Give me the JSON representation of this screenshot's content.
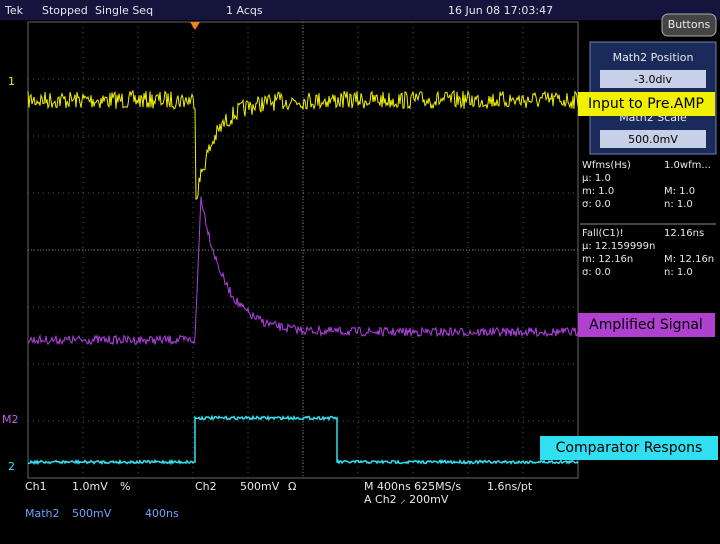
{
  "status_bar": {
    "brand": "Tek",
    "state": "Stopped",
    "mode": "Single Seq",
    "acquisitions": "1 Acqs",
    "timestamp": "16 Jun 08 17:03:47",
    "button": "Buttons"
  },
  "side_panel": {
    "title": "Math2 Position",
    "position": "-3.0div",
    "scale_title": "Math2 Scale",
    "scale": "500.0mV"
  },
  "measurements": [
    [
      [
        "Wfms(Hs)",
        "1.0wfm..."
      ],
      [
        "µ: 1.0"
      ],
      [
        "m: 1.0",
        "M: 1.0"
      ],
      [
        "σ: 0.0",
        "n: 1.0"
      ]
    ],
    [
      [
        "Fall(C1)!",
        "12.16ns"
      ],
      [
        "µ: 12.159999n"
      ],
      [
        "m: 12.16n",
        "M: 12.16n"
      ],
      [
        "σ: 0.0",
        "n: 1.0"
      ]
    ]
  ],
  "annotations": [
    "Input to Pre.AMP",
    "Amplified Signal",
    "Comparator Respons"
  ],
  "channel_markers": [
    "1",
    "M2",
    "2"
  ],
  "footer": {
    "ch1": "Ch1",
    "ch1_scale": "1.0mV",
    "ch1_flag": "%",
    "ch2": "Ch2",
    "ch2_scale": "500mV",
    "ch2_flag": "Ω",
    "timebase": "M 400ns 625MS/s",
    "resolution": "1.6ns/pt",
    "trigger": "A  Ch2  ⸝  200mV",
    "math": "Math2",
    "math_scale": "500mV",
    "math_time": "400ns"
  }
}
